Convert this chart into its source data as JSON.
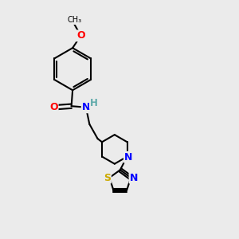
{
  "bg_color": "#ebebeb",
  "bond_color": "#000000",
  "bond_width": 1.5,
  "atom_colors": {
    "O": "#ff0000",
    "N": "#0000ff",
    "S": "#ccaa00",
    "C": "#000000",
    "H": "#5faaaa"
  },
  "font_size": 9,
  "fig_bg": "#ebebeb"
}
